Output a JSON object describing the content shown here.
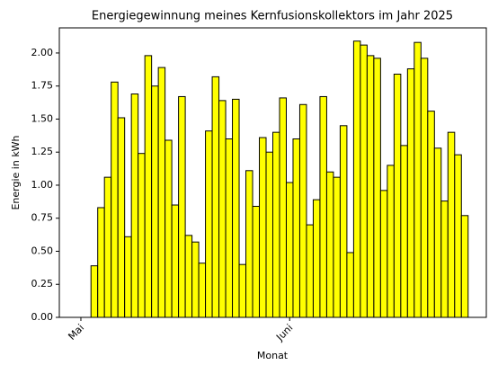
{
  "chart_data": {
    "type": "bar",
    "title": "Energiegewinnung meines Kernfusionskollektors im Jahr 2025",
    "xlabel": "Monat",
    "ylabel": "Energie in kWh",
    "categories": [
      "Mai",
      null,
      null,
      null,
      null,
      null,
      null,
      null,
      null,
      null,
      null,
      null,
      null,
      null,
      null,
      null,
      null,
      null,
      null,
      null,
      null,
      null,
      null,
      null,
      null,
      null,
      null,
      null,
      null,
      null,
      null,
      "Juni",
      null,
      null,
      null,
      null,
      null,
      null,
      null,
      null,
      null,
      null,
      null,
      null,
      null,
      null,
      null,
      null,
      null,
      null,
      null,
      null,
      null,
      null,
      null,
      null,
      null,
      null
    ],
    "values": [
      0,
      0,
      0.39,
      0.83,
      1.06,
      1.78,
      1.51,
      0.61,
      1.69,
      1.24,
      1.98,
      1.75,
      1.89,
      1.34,
      0.85,
      1.67,
      0.62,
      0.57,
      0.41,
      1.41,
      1.82,
      1.64,
      1.35,
      1.65,
      0.4,
      1.11,
      0.84,
      1.36,
      1.25,
      1.4,
      1.66,
      1.02,
      1.35,
      1.61,
      0.7,
      0.89,
      1.67,
      1.1,
      1.06,
      1.45,
      0.49,
      2.09,
      2.06,
      1.98,
      1.96,
      0.96,
      1.15,
      1.84,
      1.3,
      1.88,
      2.08,
      1.96,
      1.56,
      1.28,
      0.88,
      1.4,
      1.23,
      0.77
    ],
    "color": "#ffff00",
    "edgecolor": "#000000",
    "ylim": [
      0,
      2.19
    ],
    "yticks": [
      {
        "value": 0,
        "label": "0.00"
      },
      0.25,
      {
        "value": 0.5,
        "label": "0.50"
      },
      0.75,
      {
        "value": 1,
        "label": "1.00"
      },
      1.25,
      {
        "value": 1.5,
        "label": "1.50"
      },
      1.75,
      {
        "value": 2,
        "label": "2.00"
      }
    ],
    "grid": false
  }
}
